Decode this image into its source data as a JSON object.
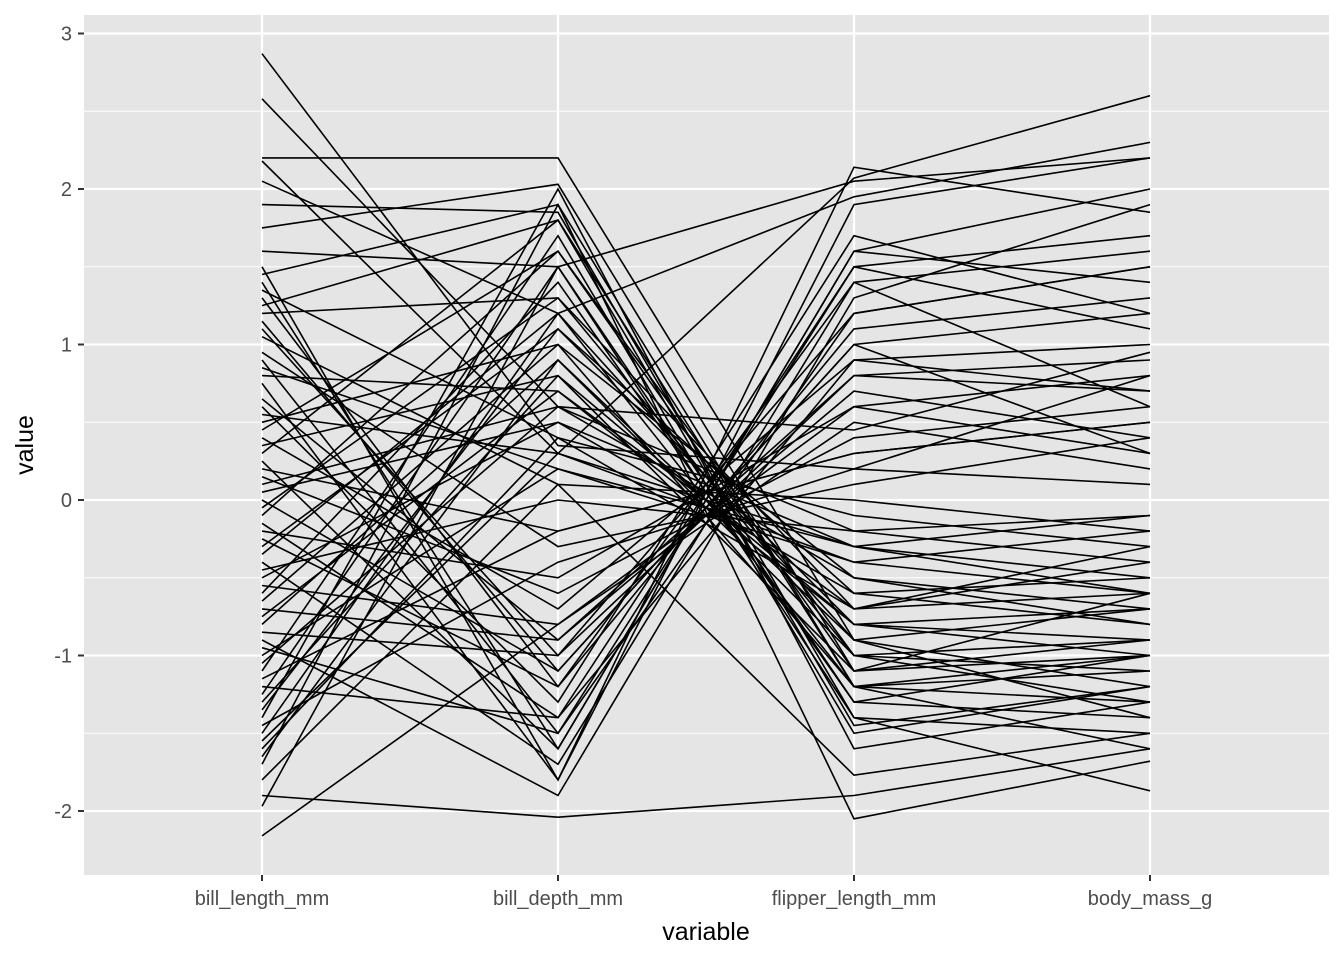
{
  "chart_data": {
    "type": "parallel-coordinates",
    "title": "",
    "xlabel": "variable",
    "ylabel": "value",
    "categories": [
      "bill_length_mm",
      "bill_depth_mm",
      "flipper_length_mm",
      "body_mass_g"
    ],
    "ylim": [
      -2.4,
      3.1
    ],
    "y_ticks": [
      -2,
      -1,
      0,
      1,
      2,
      3
    ],
    "y_tick_labels": [
      "-2",
      "-1",
      "0",
      "1",
      "2",
      "3"
    ],
    "grid": true,
    "legend": "none",
    "colors": {
      "panel": "#e5e5e5",
      "grid": "#ffffff",
      "line": "#000000"
    },
    "series": [
      {
        "values": [
          2.87,
          0.35,
          0.2,
          0.8
        ]
      },
      {
        "values": [
          2.58,
          0.6,
          0.45,
          0.95
        ]
      },
      {
        "values": [
          2.2,
          2.2,
          -0.9,
          -1.2
        ]
      },
      {
        "values": [
          2.18,
          0.3,
          2.07,
          2.6
        ]
      },
      {
        "values": [
          2.05,
          1.2,
          1.95,
          2.3
        ]
      },
      {
        "values": [
          1.9,
          1.85,
          -1.4,
          -1.5
        ]
      },
      {
        "values": [
          1.75,
          2.03,
          -1.1,
          -0.6
        ]
      },
      {
        "values": [
          1.6,
          1.5,
          2.05,
          2.2
        ]
      },
      {
        "values": [
          1.5,
          -1.8,
          2.14,
          1.85
        ]
      },
      {
        "values": [
          1.4,
          -1.6,
          1.6,
          2.0
        ]
      },
      {
        "values": [
          1.3,
          -1.2,
          1.4,
          0.6
        ]
      },
      {
        "values": [
          1.2,
          1.3,
          -0.7,
          -0.3
        ]
      },
      {
        "values": [
          1.1,
          -1.0,
          1.2,
          1.5
        ]
      },
      {
        "values": [
          0.9,
          -1.5,
          1.5,
          1.7
        ]
      },
      {
        "values": [
          0.8,
          0.7,
          -0.8,
          -1.0
        ]
      },
      {
        "values": [
          0.6,
          -1.3,
          1.7,
          1.2
        ]
      },
      {
        "values": [
          0.5,
          1.0,
          -0.5,
          -0.7
        ]
      },
      {
        "values": [
          0.4,
          -0.7,
          0.9,
          1.0
        ]
      },
      {
        "values": [
          0.3,
          1.8,
          -1.2,
          -1.6
        ]
      },
      {
        "values": [
          0.2,
          -0.2,
          0.3,
          0.5
        ]
      },
      {
        "values": [
          0.1,
          0.6,
          -0.2,
          -0.1
        ]
      },
      {
        "values": [
          0.0,
          -1.1,
          1.0,
          0.3
        ]
      },
      {
        "values": [
          -0.1,
          1.6,
          -1.0,
          -1.3
        ]
      },
      {
        "values": [
          -0.2,
          -0.5,
          0.6,
          0.8
        ]
      },
      {
        "values": [
          -0.3,
          1.1,
          -0.6,
          -0.8
        ]
      },
      {
        "values": [
          -0.4,
          -1.7,
          1.4,
          1.6
        ]
      },
      {
        "values": [
          -0.5,
          0.5,
          -0.3,
          -0.5
        ]
      },
      {
        "values": [
          -0.6,
          1.4,
          -1.3,
          -1.0
        ]
      },
      {
        "values": [
          -0.7,
          -0.9,
          0.7,
          0.4
        ]
      },
      {
        "values": [
          -0.8,
          0.9,
          -0.9,
          -1.4
        ]
      },
      {
        "values": [
          -0.9,
          -1.9,
          1.3,
          1.9
        ]
      },
      {
        "values": [
          -1.0,
          0.2,
          -0.4,
          -0.2
        ]
      },
      {
        "values": [
          -1.1,
          1.7,
          -1.5,
          -1.2
        ]
      },
      {
        "values": [
          -1.2,
          -1.4,
          0.9,
          0.7
        ]
      },
      {
        "values": [
          -1.3,
          0.8,
          -1.1,
          -0.9
        ]
      },
      {
        "values": [
          -1.4,
          2.0,
          -1.6,
          -1.3
        ]
      },
      {
        "values": [
          -1.5,
          1.2,
          -1.2,
          -1.1
        ]
      },
      {
        "values": [
          -1.6,
          0.4,
          -0.7,
          -0.4
        ]
      },
      {
        "values": [
          -1.7,
          1.9,
          -2.05,
          -1.68
        ]
      },
      {
        "values": [
          -1.8,
          0.1,
          -1.77,
          -1.5
        ]
      },
      {
        "values": [
          -1.9,
          -2.04,
          -1.9,
          -1.6
        ]
      },
      {
        "values": [
          -1.97,
          1.5,
          -1.4,
          -1.87
        ]
      },
      {
        "values": [
          -2.16,
          -0.8,
          0.5,
          0.2
        ]
      },
      {
        "values": [
          1.35,
          0.4,
          -0.1,
          -0.3
        ]
      },
      {
        "values": [
          1.25,
          1.8,
          -1.45,
          -1.2
        ]
      },
      {
        "values": [
          0.95,
          -0.3,
          0.1,
          0.4
        ]
      },
      {
        "values": [
          0.75,
          -1.8,
          1.9,
          2.2
        ]
      },
      {
        "values": [
          0.55,
          0.3,
          -0.3,
          -0.6
        ]
      },
      {
        "values": [
          0.35,
          0.8,
          -0.8,
          -0.7
        ]
      },
      {
        "values": [
          0.15,
          -0.6,
          0.4,
          0.6
        ]
      },
      {
        "values": [
          -0.05,
          1.3,
          -1.0,
          -0.9
        ]
      },
      {
        "values": [
          -0.25,
          -1.2,
          1.1,
          1.3
        ]
      },
      {
        "values": [
          -0.45,
          0.0,
          -0.2,
          -0.4
        ]
      },
      {
        "values": [
          -0.65,
          1.0,
          -1.2,
          -1.0
        ]
      },
      {
        "values": [
          -0.85,
          -1.0,
          0.8,
          0.9
        ]
      },
      {
        "values": [
          -1.05,
          0.6,
          -0.5,
          -0.8
        ]
      },
      {
        "values": [
          -1.25,
          1.5,
          -1.3,
          -1.4
        ]
      },
      {
        "values": [
          -1.45,
          -0.4,
          0.2,
          0.1
        ]
      },
      {
        "values": [
          -1.65,
          0.9,
          -1.0,
          -1.1
        ]
      },
      {
        "values": [
          0.25,
          -1.6,
          1.6,
          1.4
        ]
      },
      {
        "values": [
          0.05,
          0.5,
          -0.6,
          -0.5
        ]
      },
      {
        "values": [
          -0.15,
          -1.4,
          1.5,
          1.1
        ]
      },
      {
        "values": [
          -0.35,
          1.2,
          -0.9,
          -0.7
        ]
      },
      {
        "values": [
          -0.55,
          -0.8,
          0.6,
          0.3
        ]
      },
      {
        "values": [
          -0.75,
          0.7,
          -0.7,
          -0.6
        ]
      },
      {
        "values": [
          -0.95,
          -1.5,
          1.2,
          1.5
        ]
      },
      {
        "values": [
          1.05,
          0.1,
          0.0,
          -0.2
        ]
      },
      {
        "values": [
          0.65,
          -0.9,
          0.8,
          0.7
        ]
      },
      {
        "values": [
          0.45,
          1.6,
          -1.1,
          -1.0
        ]
      },
      {
        "values": [
          -1.15,
          -0.2,
          0.3,
          0.5
        ]
      },
      {
        "values": [
          -1.35,
          1.1,
          -0.8,
          -0.9
        ]
      },
      {
        "values": [
          -1.55,
          0.3,
          -0.4,
          -0.6
        ]
      },
      {
        "values": [
          1.45,
          1.9,
          -1.2,
          -1.3
        ]
      },
      {
        "values": [
          1.15,
          -1.1,
          1.0,
          1.2
        ]
      },
      {
        "values": [
          0.85,
          0.2,
          -0.3,
          -0.1
        ]
      }
    ]
  }
}
